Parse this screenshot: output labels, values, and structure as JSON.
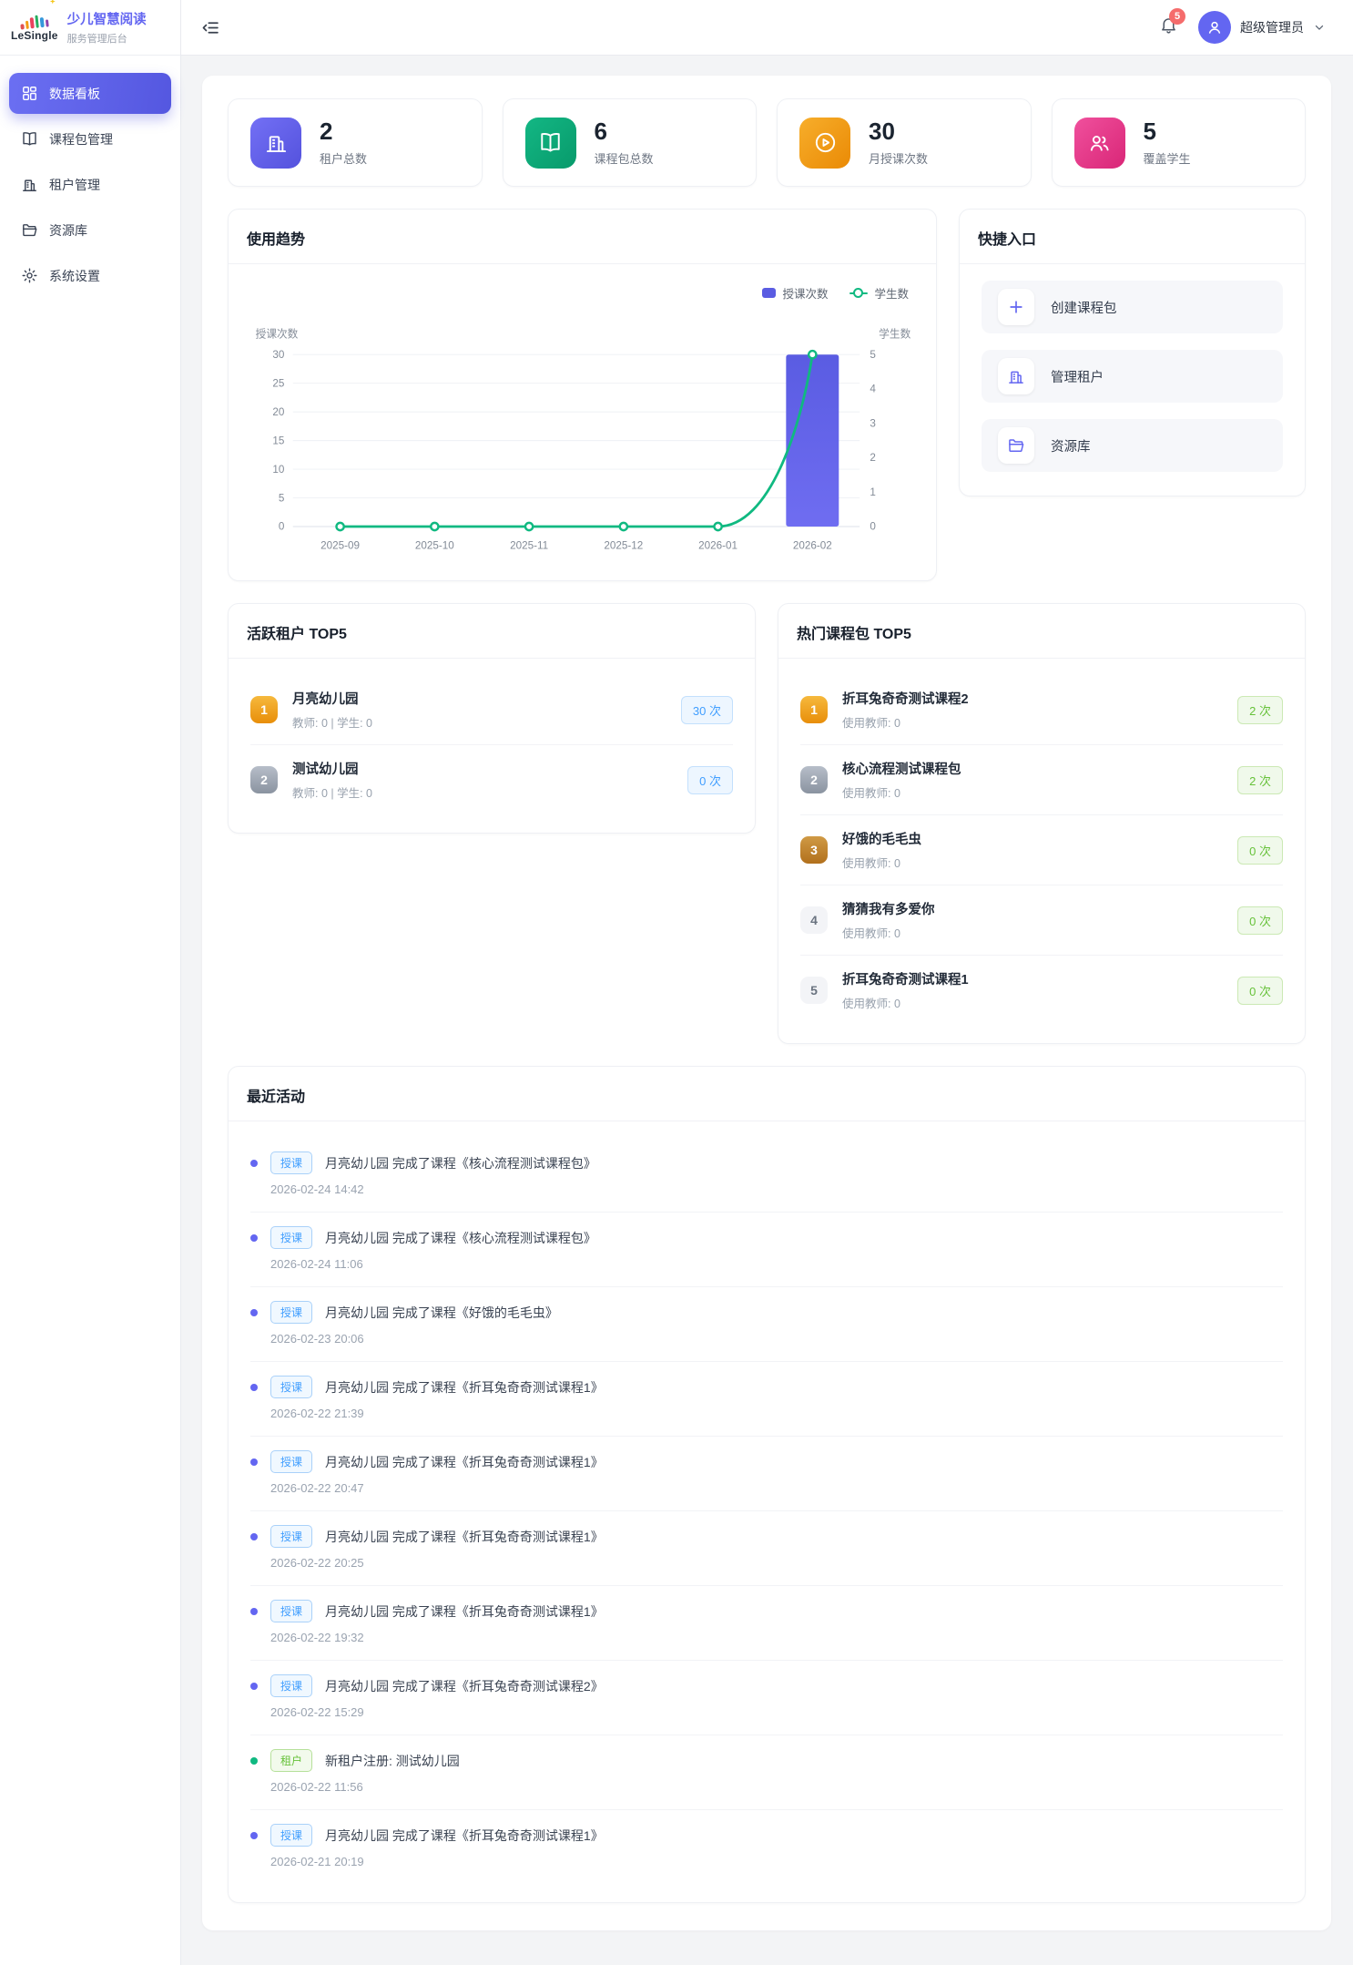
{
  "brand": {
    "logo_text": "LeSingle",
    "title": "少儿智慧阅读",
    "subtitle": "服务管理后台"
  },
  "sidebar": {
    "items": [
      {
        "label": "数据看板",
        "icon": "dashboard",
        "variant": "active"
      },
      {
        "label": "课程包管理",
        "icon": "book"
      },
      {
        "label": "租户管理",
        "icon": "building"
      },
      {
        "label": "资源库",
        "icon": "folder"
      },
      {
        "label": "系统设置",
        "icon": "gear"
      }
    ]
  },
  "header": {
    "notification_count": "5",
    "user_name": "超级管理员"
  },
  "stats": [
    {
      "value": "2",
      "label": "租户总数",
      "icon": "building",
      "variant": "purple",
      "color": "#5a5ce2"
    },
    {
      "value": "6",
      "label": "课程包总数",
      "icon": "book-open",
      "variant": "green",
      "color": "#0ca678"
    },
    {
      "value": "30",
      "label": "月授课次数",
      "icon": "play-circle",
      "variant": "orange",
      "color": "#f0930d"
    },
    {
      "value": "5",
      "label": "覆盖学生",
      "icon": "users",
      "variant": "pink",
      "color": "#e8397f"
    }
  ],
  "trend": {
    "title": "使用趋势",
    "legend": [
      {
        "label": "授课次数",
        "variant": "bar"
      },
      {
        "label": "学生数",
        "variant": "line"
      }
    ],
    "chart_data": {
      "type": "bar+line",
      "categories": [
        "2025-09",
        "2025-10",
        "2025-11",
        "2025-12",
        "2026-01",
        "2026-02"
      ],
      "series": [
        {
          "name": "授课次数",
          "type": "bar",
          "axis": "left",
          "color": "#5a5ce2",
          "values": [
            0,
            0,
            0,
            0,
            0,
            30
          ]
        },
        {
          "name": "学生数",
          "type": "line",
          "axis": "right",
          "color": "#10b981",
          "values": [
            0,
            0,
            0,
            0,
            0,
            5
          ]
        }
      ],
      "left_axis": {
        "label": "授课次数",
        "ticks": [
          0,
          5,
          10,
          15,
          20,
          25,
          30
        ],
        "max": 30
      },
      "right_axis": {
        "label": "学生数",
        "ticks": [
          0,
          1,
          2,
          3,
          4,
          5
        ],
        "max": 5
      },
      "grid": true,
      "legend_position": "top-right"
    }
  },
  "quick": {
    "title": "快捷入口",
    "items": [
      {
        "label": "创建课程包",
        "icon": "plus"
      },
      {
        "label": "管理租户",
        "icon": "building"
      },
      {
        "label": "资源库",
        "icon": "folder"
      }
    ]
  },
  "tenants": {
    "title": "活跃租户 TOP5",
    "items": [
      {
        "rank": "1",
        "variant": "r1",
        "name": "月亮幼儿园",
        "meta": "教师: 0 | 学生: 0",
        "count": "30 次"
      },
      {
        "rank": "2",
        "variant": "r2",
        "name": "测试幼儿园",
        "meta": "教师: 0 | 学生: 0",
        "count": "0 次"
      }
    ]
  },
  "packages": {
    "title": "热门课程包 TOP5",
    "items": [
      {
        "rank": "1",
        "variant": "r1",
        "name": "折耳兔奇奇测试课程2",
        "meta": "使用教师: 0",
        "count": "2 次"
      },
      {
        "rank": "2",
        "variant": "r2",
        "name": "核心流程测试课程包",
        "meta": "使用教师: 0",
        "count": "2 次"
      },
      {
        "rank": "3",
        "variant": "r3",
        "name": "好饿的毛毛虫",
        "meta": "使用教师: 0",
        "count": "0 次"
      },
      {
        "rank": "4",
        "variant": "r4",
        "name": "猜猜我有多爱你",
        "meta": "使用教师: 0",
        "count": "0 次"
      },
      {
        "rank": "5",
        "variant": "r5",
        "name": "折耳兔奇奇测试课程1",
        "meta": "使用教师: 0",
        "count": "0 次"
      }
    ]
  },
  "activity": {
    "title": "最近活动",
    "items": [
      {
        "tag": "授课",
        "variant": "blue",
        "text": "月亮幼儿园 完成了课程《核心流程测试课程包》",
        "time": "2026-02-24 14:42"
      },
      {
        "tag": "授课",
        "variant": "blue",
        "text": "月亮幼儿园 完成了课程《核心流程测试课程包》",
        "time": "2026-02-24 11:06"
      },
      {
        "tag": "授课",
        "variant": "blue",
        "text": "月亮幼儿园 完成了课程《好饿的毛毛虫》",
        "time": "2026-02-23 20:06"
      },
      {
        "tag": "授课",
        "variant": "blue",
        "text": "月亮幼儿园 完成了课程《折耳兔奇奇测试课程1》",
        "time": "2026-02-22 21:39"
      },
      {
        "tag": "授课",
        "variant": "blue",
        "text": "月亮幼儿园 完成了课程《折耳兔奇奇测试课程1》",
        "time": "2026-02-22 20:47"
      },
      {
        "tag": "授课",
        "variant": "blue",
        "text": "月亮幼儿园 完成了课程《折耳兔奇奇测试课程1》",
        "time": "2026-02-22 20:25"
      },
      {
        "tag": "授课",
        "variant": "blue",
        "text": "月亮幼儿园 完成了课程《折耳兔奇奇测试课程1》",
        "time": "2026-02-22 19:32"
      },
      {
        "tag": "授课",
        "variant": "blue",
        "text": "月亮幼儿园 完成了课程《折耳兔奇奇测试课程2》",
        "time": "2026-02-22 15:29"
      },
      {
        "tag": "租户",
        "variant": "green",
        "text": "新租户注册: 测试幼儿园",
        "time": "2026-02-22 11:56"
      },
      {
        "tag": "授课",
        "variant": "blue",
        "text": "月亮幼儿园 完成了课程《折耳兔奇奇测试课程1》",
        "time": "2026-02-21 20:19"
      }
    ]
  }
}
